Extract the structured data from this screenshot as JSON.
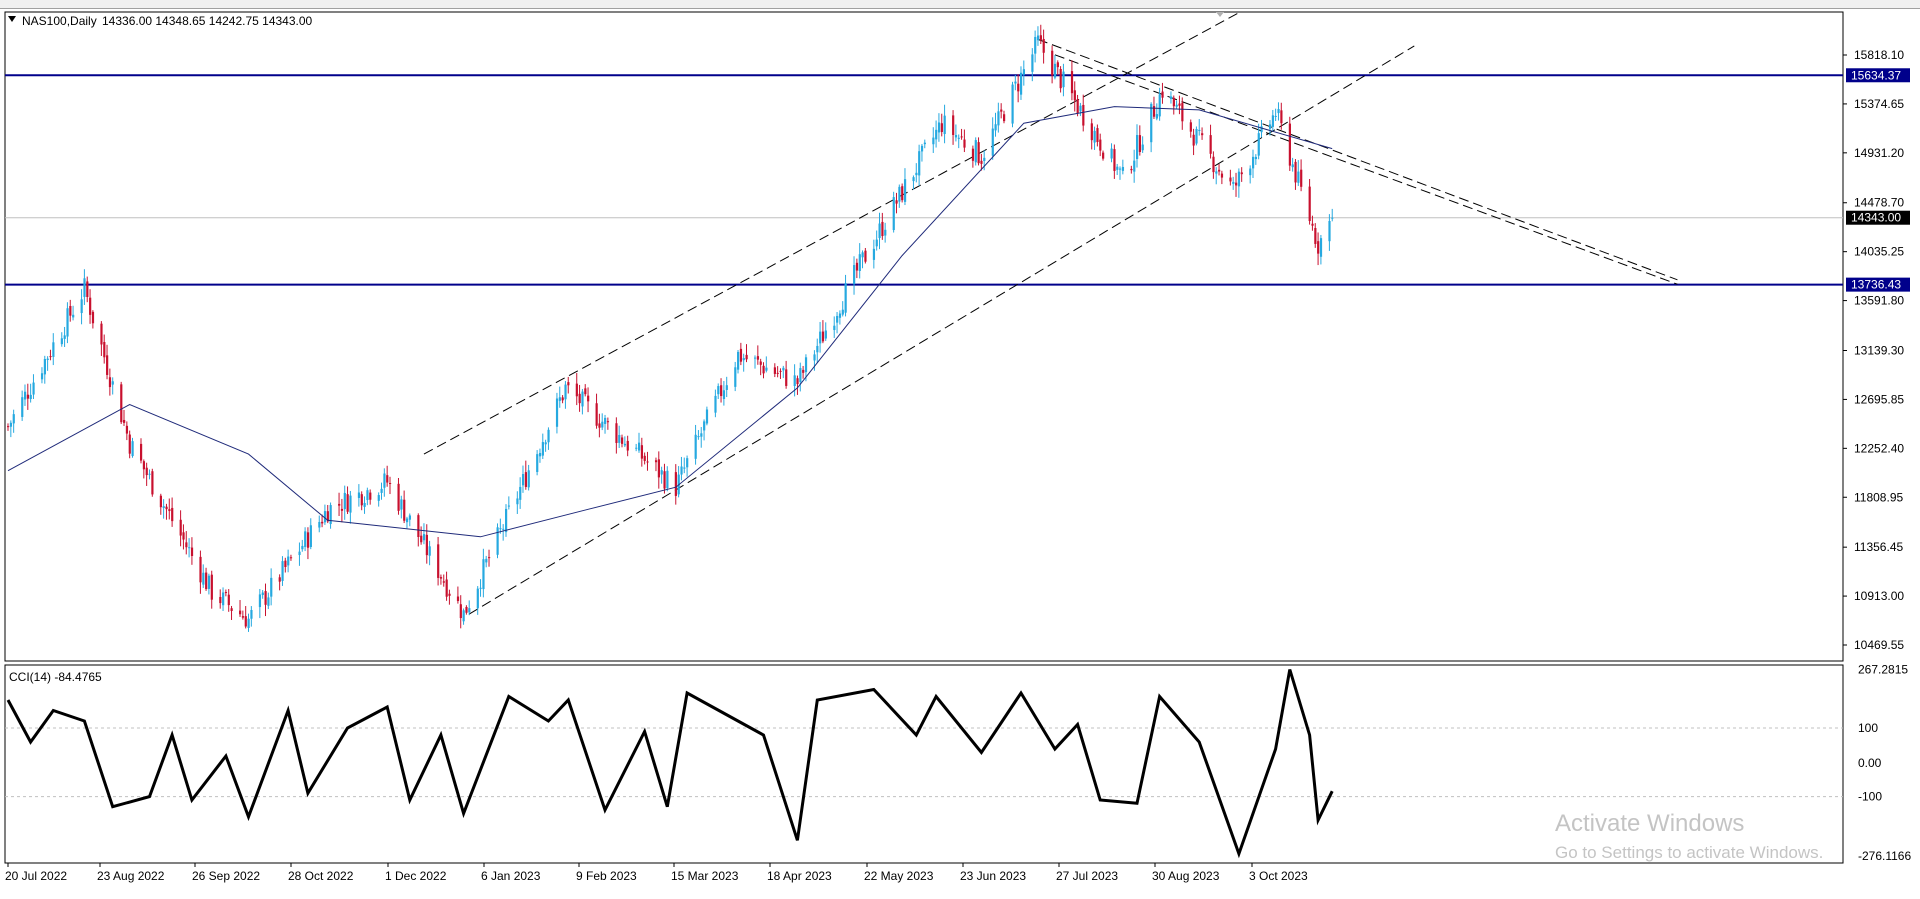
{
  "header": {
    "symbol_label": "NAS100,Daily",
    "ohlc_label": "14336.00 14348.65 14242.75 14343.00"
  },
  "indicator": {
    "label": "CCI(14) -84.4765"
  },
  "watermark": {
    "title": "Activate Windows",
    "subtitle": "Go to Settings to activate Windows."
  },
  "colors": {
    "bull": "#26a9e0",
    "bear": "#c8102e",
    "ma": "#1f2a7a",
    "hline": "#00008b",
    "grid": "#c0c0c0",
    "badge_current": "#000000"
  },
  "chart_data": [
    {
      "type": "candlestick",
      "title": "NAS100,Daily",
      "y_ticks": [
        15818.1,
        15374.65,
        14931.2,
        14478.7,
        14035.25,
        13591.8,
        13139.3,
        12695.85,
        12252.4,
        11808.95,
        11356.45,
        10913.0,
        10469.55
      ],
      "x_tick_labels": [
        "20 Jul 2022",
        "23 Aug 2022",
        "26 Sep 2022",
        "28 Oct 2022",
        "1 Dec 2022",
        "6 Jan 2023",
        "9 Feb 2023",
        "15 Mar 2023",
        "18 Apr 2023",
        "22 May 2023",
        "23 Jun 2023",
        "27 Jul 2023",
        "30 Aug 2023",
        "3 Oct 2023"
      ],
      "horizontal_levels": [
        {
          "value": 15634.37,
          "label": "15634.37"
        },
        {
          "value": 13736.43,
          "label": "13736.43"
        }
      ],
      "current_price": {
        "value": 14343.0,
        "label": "14343.00"
      },
      "ohlc_last": {
        "open": 14336.0,
        "high": 14348.65,
        "low": 14242.75,
        "close": 14343.0
      },
      "close_path_approx": [
        {
          "date": "2022-07-20",
          "close": 12450
        },
        {
          "date": "2022-08-16",
          "close": 13700
        },
        {
          "date": "2022-09-01",
          "close": 12300
        },
        {
          "date": "2022-09-30",
          "close": 10950
        },
        {
          "date": "2022-10-13",
          "close": 10700
        },
        {
          "date": "2022-11-10",
          "close": 11700
        },
        {
          "date": "2022-12-01",
          "close": 11950
        },
        {
          "date": "2022-12-28",
          "close": 10750
        },
        {
          "date": "2023-02-02",
          "close": 12800
        },
        {
          "date": "2023-03-13",
          "close": 11900
        },
        {
          "date": "2023-04-04",
          "close": 13100
        },
        {
          "date": "2023-04-25",
          "close": 12850
        },
        {
          "date": "2023-05-19",
          "close": 14000
        },
        {
          "date": "2023-06-15",
          "close": 15200
        },
        {
          "date": "2023-06-29",
          "close": 14900
        },
        {
          "date": "2023-07-19",
          "close": 15930
        },
        {
          "date": "2023-08-18",
          "close": 14700
        },
        {
          "date": "2023-09-01",
          "close": 15500
        },
        {
          "date": "2023-09-26",
          "close": 14600
        },
        {
          "date": "2023-10-11",
          "close": 15300
        },
        {
          "date": "2023-10-26",
          "close": 14100
        },
        {
          "date": "2023-10-31",
          "close": 14343
        }
      ],
      "moving_average_approx": [
        {
          "date": "2022-07-20",
          "value": 12050
        },
        {
          "date": "2022-09-01",
          "value": 12650
        },
        {
          "date": "2022-10-13",
          "value": 12200
        },
        {
          "date": "2022-11-10",
          "value": 11600
        },
        {
          "date": "2023-01-03",
          "value": 11450
        },
        {
          "date": "2023-02-10",
          "value": 11700
        },
        {
          "date": "2023-03-13",
          "value": 11900
        },
        {
          "date": "2023-04-25",
          "value": 12800
        },
        {
          "date": "2023-06-01",
          "value": 14000
        },
        {
          "date": "2023-07-14",
          "value": 15200
        },
        {
          "date": "2023-08-15",
          "value": 15350
        },
        {
          "date": "2023-09-14",
          "value": 15320
        },
        {
          "date": "2023-10-31",
          "value": 14970
        }
      ],
      "trendlines": [
        {
          "style": "dashed",
          "from": {
            "date": "2022-12-30",
            "value": 10750
          },
          "to": {
            "date": "2023-11-29",
            "value": 15900
          }
        },
        {
          "style": "dashed",
          "from": {
            "date": "2022-12-14",
            "value": 12200
          },
          "to": {
            "date": "2023-10-08",
            "value": 16340
          }
        },
        {
          "style": "dashed",
          "from": {
            "date": "2023-07-19",
            "value": 15960
          },
          "to": {
            "date": "2024-03-01",
            "value": 13780
          }
        },
        {
          "style": "dashed",
          "from": {
            "date": "2023-07-25",
            "value": 15820
          },
          "to": {
            "date": "2024-03-01",
            "value": 13740
          }
        }
      ]
    },
    {
      "type": "line",
      "title": "CCI(14) -84.4765",
      "y_ticks": [
        267.2815,
        100,
        0.0,
        -100,
        -276.1166
      ],
      "y_tick_labels": [
        "267.2815",
        "100",
        "0.00",
        "-100",
        "-276.1166"
      ],
      "levels": [
        100,
        -100
      ],
      "cci_approx": [
        {
          "date": "2022-07-20",
          "value": 180
        },
        {
          "date": "2022-07-28",
          "value": 60
        },
        {
          "date": "2022-08-05",
          "value": 150
        },
        {
          "date": "2022-08-16",
          "value": 120
        },
        {
          "date": "2022-08-26",
          "value": -130
        },
        {
          "date": "2022-09-08",
          "value": -100
        },
        {
          "date": "2022-09-16",
          "value": 80
        },
        {
          "date": "2022-09-23",
          "value": -110
        },
        {
          "date": "2022-10-05",
          "value": 20
        },
        {
          "date": "2022-10-13",
          "value": -160
        },
        {
          "date": "2022-10-27",
          "value": 150
        },
        {
          "date": "2022-11-03",
          "value": -90
        },
        {
          "date": "2022-11-17",
          "value": 100
        },
        {
          "date": "2022-12-01",
          "value": 160
        },
        {
          "date": "2022-12-09",
          "value": -110
        },
        {
          "date": "2022-12-20",
          "value": 80
        },
        {
          "date": "2022-12-28",
          "value": -150
        },
        {
          "date": "2023-01-13",
          "value": 190
        },
        {
          "date": "2023-01-27",
          "value": 120
        },
        {
          "date": "2023-02-03",
          "value": 180
        },
        {
          "date": "2023-02-16",
          "value": -140
        },
        {
          "date": "2023-03-02",
          "value": 90
        },
        {
          "date": "2023-03-10",
          "value": -130
        },
        {
          "date": "2023-03-17",
          "value": 200
        },
        {
          "date": "2023-04-04",
          "value": 120
        },
        {
          "date": "2023-04-13",
          "value": 80
        },
        {
          "date": "2023-04-25",
          "value": -230
        },
        {
          "date": "2023-05-02",
          "value": 180
        },
        {
          "date": "2023-05-22",
          "value": 210
        },
        {
          "date": "2023-06-06",
          "value": 80
        },
        {
          "date": "2023-06-13",
          "value": 190
        },
        {
          "date": "2023-06-29",
          "value": 30
        },
        {
          "date": "2023-07-13",
          "value": 200
        },
        {
          "date": "2023-07-25",
          "value": 40
        },
        {
          "date": "2023-08-02",
          "value": 110
        },
        {
          "date": "2023-08-10",
          "value": -110
        },
        {
          "date": "2023-08-23",
          "value": -120
        },
        {
          "date": "2023-08-31",
          "value": 190
        },
        {
          "date": "2023-09-14",
          "value": 60
        },
        {
          "date": "2023-09-28",
          "value": -270
        },
        {
          "date": "2023-10-11",
          "value": 40
        },
        {
          "date": "2023-10-16",
          "value": 267
        },
        {
          "date": "2023-10-23",
          "value": 80
        },
        {
          "date": "2023-10-26",
          "value": -170
        },
        {
          "date": "2023-10-31",
          "value": -84
        }
      ]
    }
  ]
}
